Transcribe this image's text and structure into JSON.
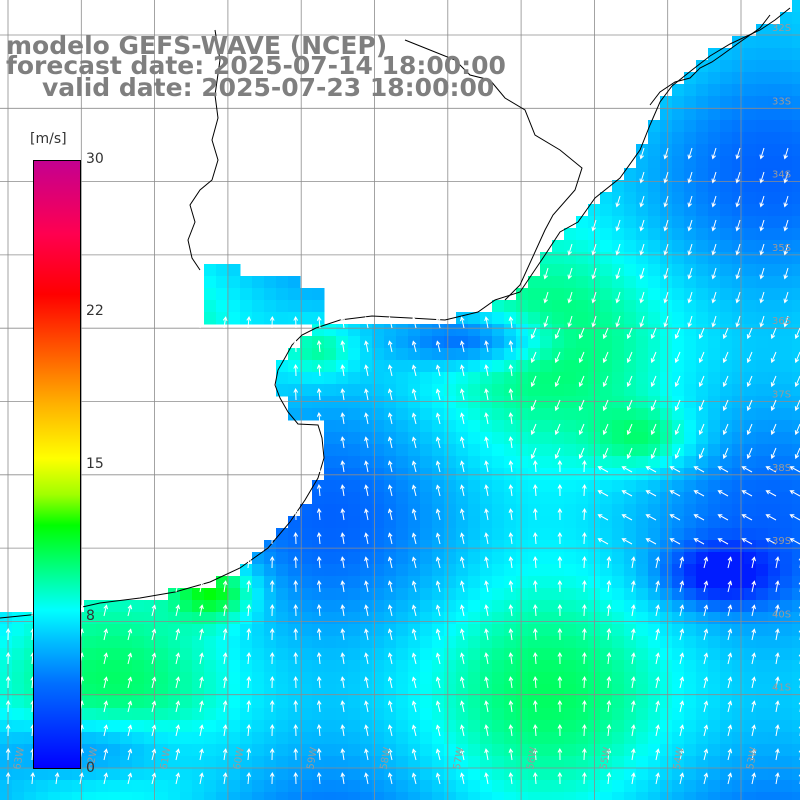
{
  "title": {
    "line1": "modelo GEFS-WAVE (NCEP)",
    "line2": "forecast date: 2025-07-14 18:00:00",
    "line3": "valid date: 2025-07-23 18:00:00"
  },
  "colorbar": {
    "unit": "[m/s]",
    "min": 0,
    "max": 30,
    "tick_labels": [
      "30",
      "22",
      "15",
      "8",
      "0"
    ],
    "tick_values": [
      30,
      22,
      15,
      8,
      0
    ]
  },
  "map": {
    "variable": "wind speed and direction",
    "lat_labels": [
      "32S",
      "33S",
      "34S",
      "35S",
      "36S",
      "37S",
      "38S",
      "39S",
      "40S",
      "41S"
    ],
    "lon_labels": [
      "63W",
      "62W",
      "61W",
      "60W",
      "59W",
      "58W",
      "57W",
      "56W",
      "55W",
      "54W",
      "53W"
    ],
    "colors": {
      "land": "#ffffff",
      "coast": "#000000",
      "grid": "#8c8c8c",
      "arrows": "#ffffff",
      "title_text": "#7f7f7f"
    }
  }
}
